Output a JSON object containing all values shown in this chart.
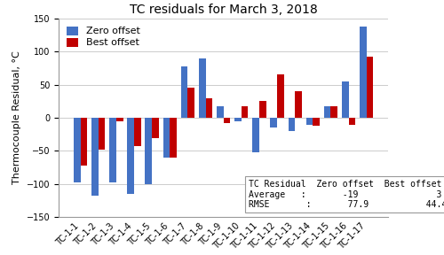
{
  "title": "TC residuals for March 3, 2018",
  "ylabel": "Thermocouple Residual, °C",
  "categories": [
    "TC-1-1",
    "TC-1-2",
    "TC-1-3",
    "TC-1-4",
    "TC-1-5",
    "TC-1-6",
    "TC-1-7",
    "TC-1-8",
    "TC-1-9",
    "TC-1-10",
    "TC-1-11",
    "TC-1-12",
    "TC-1-13",
    "TC-1-14",
    "TC-1-15",
    "TC-1-16",
    "TC-1-17"
  ],
  "zero_offset": [
    -98,
    -118,
    -98,
    -115,
    -100,
    -60,
    78,
    90,
    18,
    -5,
    -52,
    -15,
    -20,
    -10,
    18,
    55,
    138
  ],
  "best_offset": [
    -72,
    -48,
    -5,
    -42,
    -30,
    -60,
    45,
    29,
    -8,
    18,
    25,
    65,
    40,
    -12,
    18,
    -10,
    92
  ],
  "zero_color": "#4472C4",
  "best_color": "#C00000",
  "ylim": [
    -150,
    150
  ],
  "yticks": [
    -150,
    -100,
    -50,
    0,
    50,
    100,
    150
  ],
  "legend_labels": [
    "Zero offset",
    "Best offset"
  ],
  "title_fontsize": 10,
  "axis_fontsize": 8,
  "tick_fontsize": 7,
  "legend_fontsize": 8,
  "annot_fontsize": 7
}
